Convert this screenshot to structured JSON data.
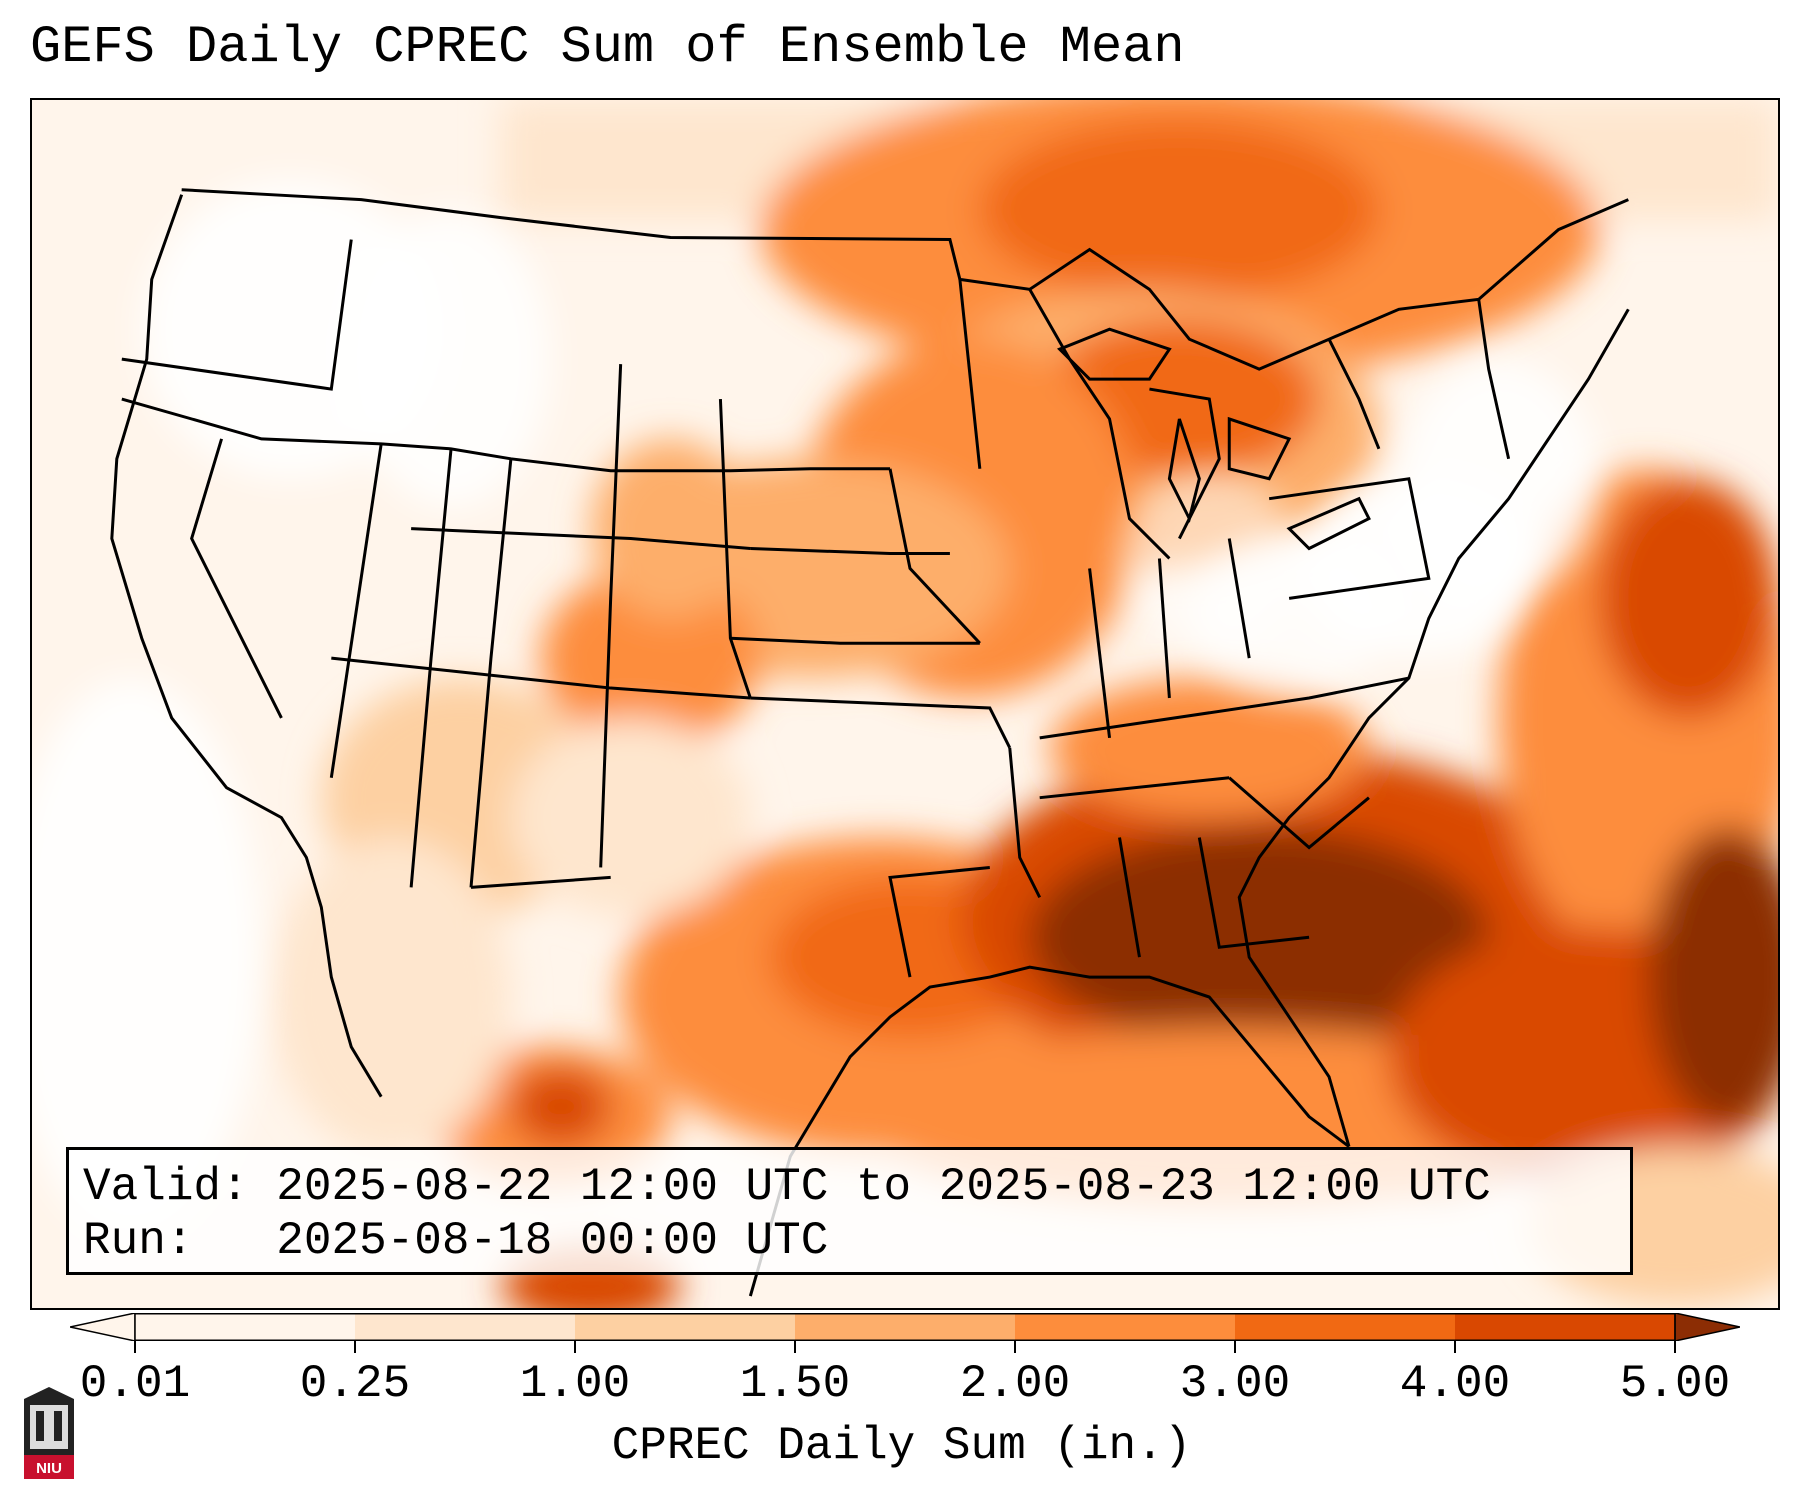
{
  "title": "GEFS Daily CPREC Sum of Ensemble Mean",
  "info": {
    "valid_label": "Valid:",
    "valid_value": "2025-08-22 12:00 UTC to 2025-08-23 12:00 UTC",
    "run_label": "Run:",
    "run_value": "2025-08-18 00:00 UTC"
  },
  "colorbar": {
    "label": "CPREC Daily Sum (in.)",
    "ticks": [
      "0.01",
      "0.25",
      "1.00",
      "1.50",
      "2.00",
      "3.00",
      "4.00",
      "5.00"
    ],
    "colors": [
      "#fff5eb",
      "#fee6ce",
      "#fdd0a2",
      "#fdae6b",
      "#fd8d3c",
      "#f16913",
      "#d94801",
      "#8c2d04"
    ]
  },
  "logo": {
    "text": "NIU"
  }
}
